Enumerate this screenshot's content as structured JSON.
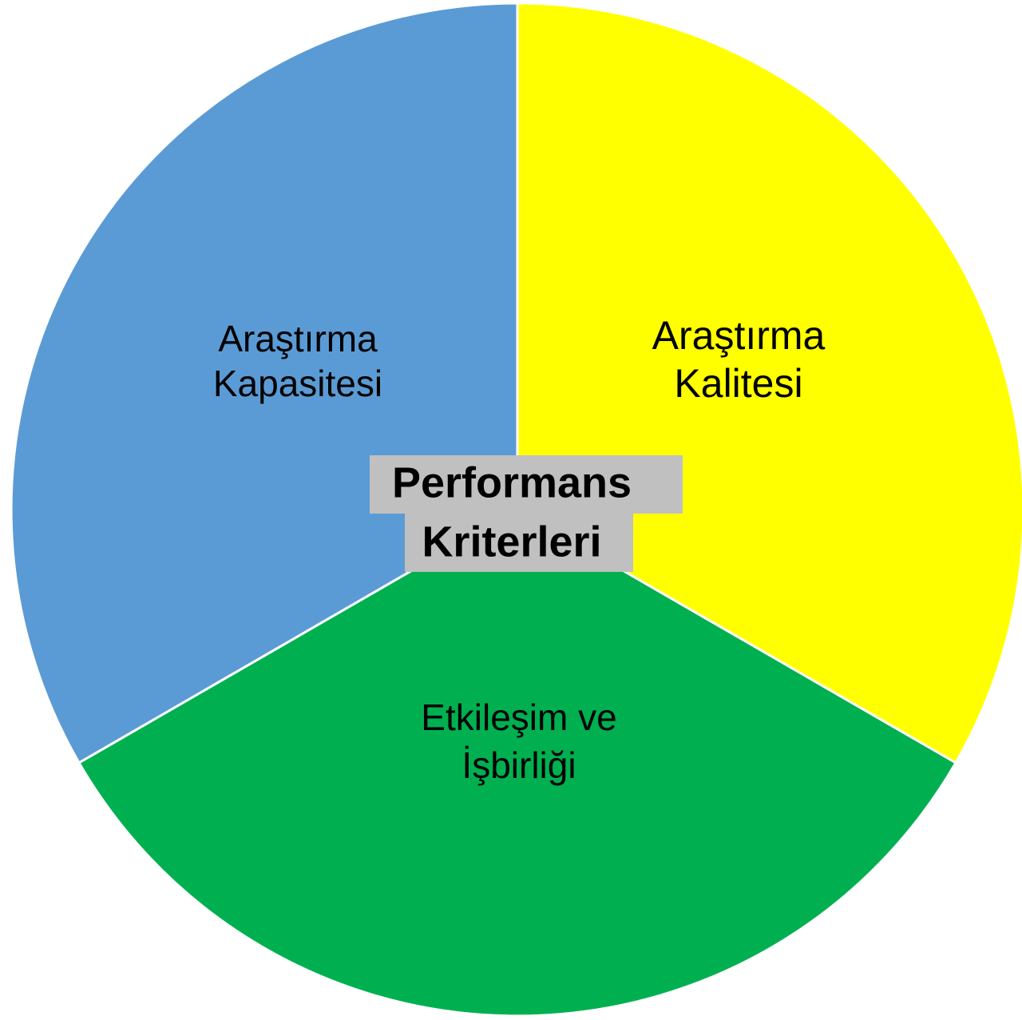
{
  "center": {
    "lines": [
      "Performans",
      "Kriterleri"
    ]
  },
  "segments": [
    {
      "lines": [
        "Araştırma",
        "Kapasitesi"
      ],
      "color": "#5b9bd5"
    },
    {
      "lines": [
        "Araştırma",
        "Kalitesi"
      ],
      "color": "#ffff00"
    },
    {
      "lines": [
        "Etkileşim ve",
        "İşbirliği"
      ],
      "color": "#00b050"
    }
  ]
}
